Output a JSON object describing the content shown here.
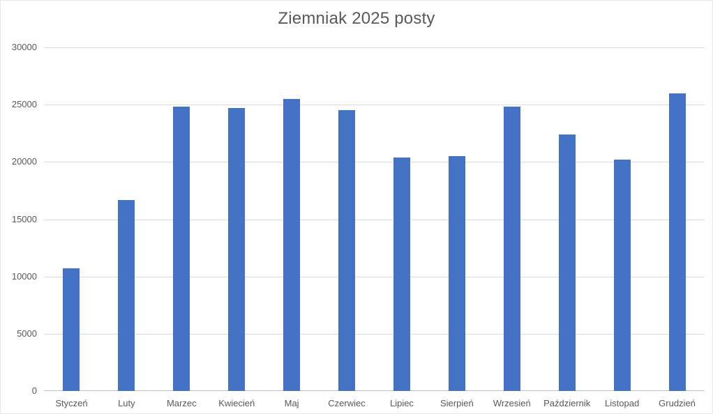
{
  "chart_data": {
    "type": "bar",
    "title": "Ziemniak 2025 posty",
    "categories": [
      "Styczeń",
      "Luty",
      "Marzec",
      "Kwiecień",
      "Maj",
      "Czerwiec",
      "Lipiec",
      "Sierpień",
      "Wrzesień",
      "Październik",
      "Listopad",
      "Grudzień"
    ],
    "values": [
      10700,
      16700,
      24800,
      24700,
      25500,
      24500,
      20400,
      20500,
      24800,
      22400,
      20200,
      26000
    ],
    "xlabel": "",
    "ylabel": "",
    "ylim": [
      0,
      30000
    ],
    "y_ticks": [
      0,
      5000,
      10000,
      15000,
      20000,
      25000,
      30000
    ],
    "grid": "horizontal",
    "legend_position": "none",
    "bar_color": "#4472C4",
    "gridline_color": "#D9D9D9",
    "axis_line_color": "#BFBFBF",
    "text_color": "#595959",
    "background_color": "#FFFFFF"
  }
}
